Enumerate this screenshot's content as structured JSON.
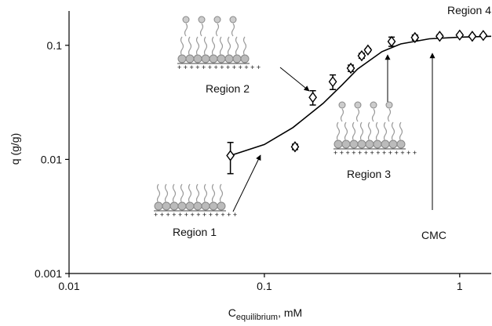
{
  "chart_data": {
    "type": "scatter",
    "y_label": "q (g/g)",
    "x_label": {
      "main": "C",
      "sub": "equilibrium",
      "rest": ", mM"
    },
    "x_log": true,
    "y_log": true,
    "xlim": [
      0.01,
      1.45
    ],
    "ylim": [
      0.001,
      0.2
    ],
    "xticks": [
      0.01,
      0.1,
      1
    ],
    "yticks": [
      0.001,
      0.01,
      0.1
    ],
    "color": "#000000",
    "series": [
      {
        "x": [
          0.067,
          0.1435,
          0.177,
          0.224,
          0.277,
          0.315,
          0.339,
          0.448,
          0.59,
          0.79,
          1.0,
          1.16,
          1.32
        ],
        "values": [
          0.0108,
          0.0129,
          0.035,
          0.048,
          0.063,
          0.081,
          0.091,
          0.108,
          0.117,
          0.12,
          0.123,
          0.12,
          0.122
        ],
        "errors": [
          0.0033,
          0.0007,
          0.005,
          0.007,
          0.004,
          0.004,
          0.003,
          0.01,
          0.006,
          0.004,
          0.003,
          0.003,
          0.003
        ]
      },
      {
        "x": [
          0.067,
          0.1,
          0.14,
          0.2,
          0.25,
          0.3,
          0.4,
          0.5,
          0.7,
          1.0,
          1.45
        ],
        "values": [
          0.0108,
          0.0135,
          0.019,
          0.031,
          0.045,
          0.062,
          0.088,
          0.103,
          0.114,
          0.118,
          0.12
        ]
      }
    ],
    "annotations": [
      "Region 1",
      "Region 2",
      "Region 3",
      "Region 4",
      "CMC"
    ]
  }
}
